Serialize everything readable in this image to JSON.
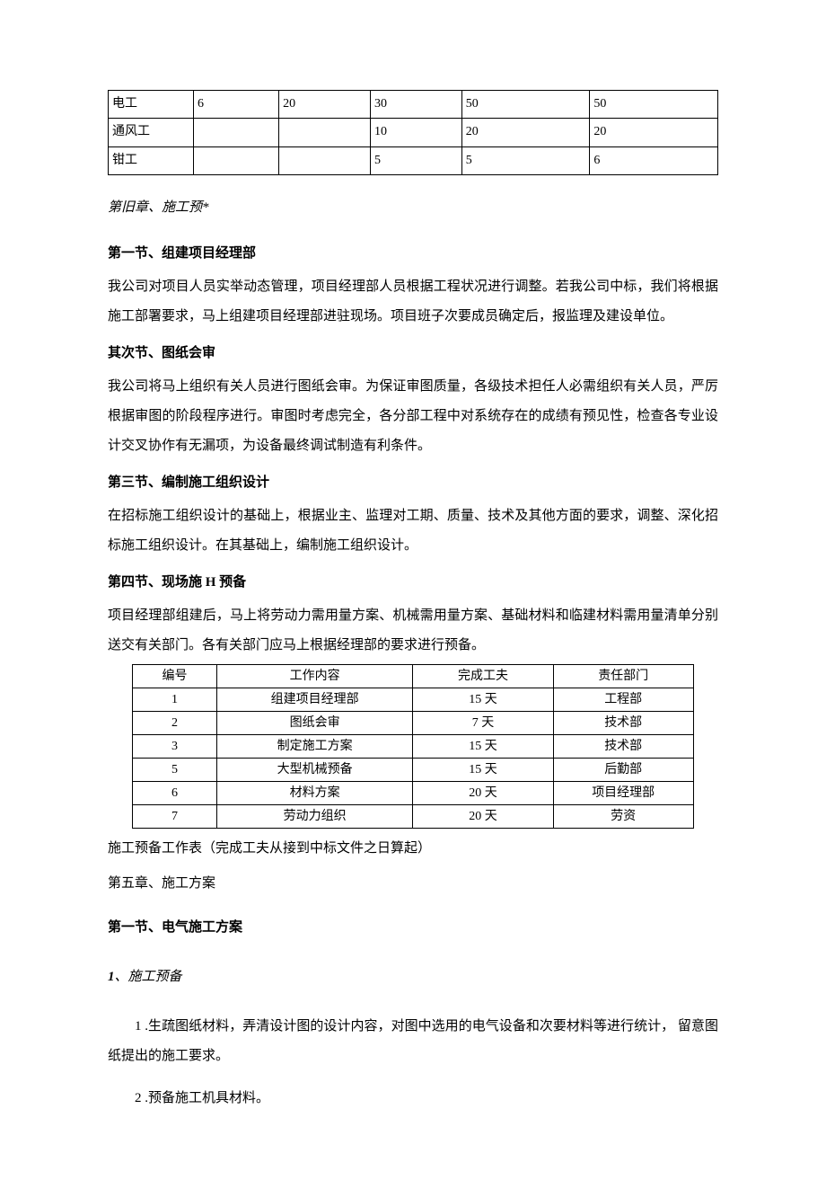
{
  "table1": {
    "col_widths": [
      "14%",
      "14%",
      "15%",
      "15%",
      "21%",
      "21%"
    ],
    "rows": [
      [
        "电工",
        "6",
        "20",
        "30",
        "50",
        "50"
      ],
      [
        "通风工",
        "",
        "",
        "10",
        "20",
        "20"
      ],
      [
        "钳工",
        "",
        "",
        "5",
        "5",
        "6"
      ]
    ]
  },
  "chapter_old": "第旧章、施工预*",
  "section1": {
    "heading": "第一节、组建项目经理部",
    "body": "我公司对项目人员实举动态管理，项目经理部人员根据工程状况进行调整。若我公司中标，我们将根据施工部署要求，马上组建项目经理部进驻现场。项目班子次要成员确定后，报监理及建设单位。"
  },
  "section2": {
    "heading": "其次节、图纸会审",
    "body": "我公司将马上组织有关人员进行图纸会审。为保证审图质量，各级技术担任人必需组织有关人员，严厉根据审图的阶段程序进行。审图时考虑完全，各分部工程中对系统存在的成绩有预见性，检查各专业设计交叉协作有无漏项，为设备最终调试制造有利条件。"
  },
  "section3": {
    "heading": "第三节、编制施工组织设计",
    "body": "在招标施工组织设计的基础上，根据业主、监理对工期、质量、技术及其他方面的要求，调整、深化招标施工组织设计。在其基础上，编制施工组织设计。"
  },
  "section4": {
    "heading": "第四节、现场施 H 预备",
    "body": "项目经理部组建后，马上将劳动力需用量方案、机械需用量方案、基础材料和临建材料需用量清单分别送交有关部门。各有关部门应马上根据经理部的要求进行预备。"
  },
  "table2": {
    "col_widths": [
      "15%",
      "35%",
      "25%",
      "25%"
    ],
    "header": [
      "编号",
      "工作内容",
      "完成工夫",
      "责任部门"
    ],
    "rows": [
      [
        "1",
        "组建项目经理部",
        "15 天",
        "工程部"
      ],
      [
        "2",
        "图纸会审",
        "7 天",
        "技术部"
      ],
      [
        "3",
        "制定施工方案",
        "15 天",
        "技术部"
      ],
      [
        "5",
        "大型机械预备",
        "15 天",
        "后勤部"
      ],
      [
        "6",
        "材料方案",
        "20 天",
        "项目经理部"
      ],
      [
        "7",
        "劳动力组织",
        "20 天",
        "劳资"
      ]
    ]
  },
  "table2_caption": "施工预备工作表（完成工夫从接到中标文件之日算起）",
  "chapter5": "第五章、施工方案",
  "section5_1": {
    "heading": "第一节、电气施工方案"
  },
  "sub1": {
    "num": "1",
    "label": "、施工预备"
  },
  "list_items": [
    "1 .生疏图纸材料，弄清设计图的设计内容，对图中选用的电气设备和次要材料等进行统计， 留意图纸提出的施工要求。",
    "2 .预备施工机具材料。"
  ]
}
